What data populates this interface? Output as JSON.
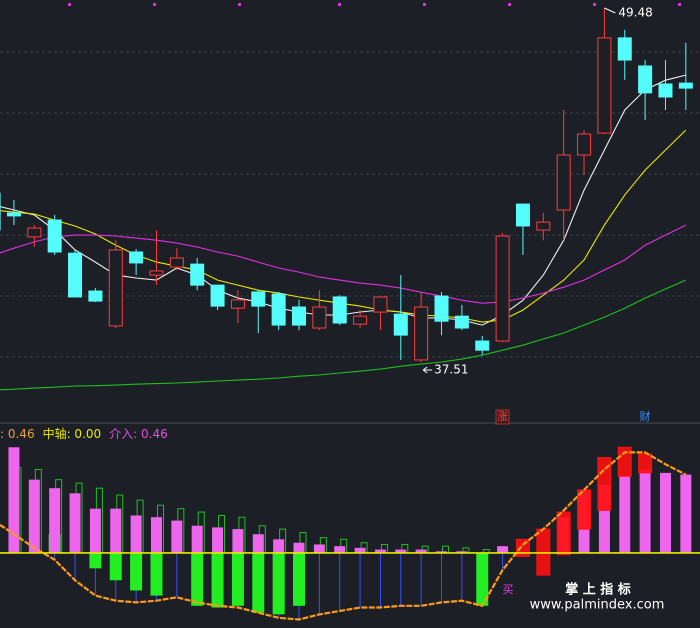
{
  "chart_data": [
    {
      "type": "candlestick",
      "ylim": [
        35.55,
        49.75
      ],
      "up_color": "#ff3c3c",
      "down_color": "#54fcfc",
      "ohlc": [
        [
          43.22,
          43.33,
          41.8,
          41.97
        ],
        [
          42.55,
          42.99,
          42.14,
          42.45
        ],
        [
          41.74,
          42.14,
          41.4,
          42.04
        ],
        [
          42.31,
          42.48,
          41.13,
          41.23
        ],
        [
          41.19,
          41.3,
          39.71,
          39.71
        ],
        [
          39.91,
          40.01,
          39.54,
          39.57
        ],
        [
          38.73,
          41.63,
          38.66,
          41.3
        ],
        [
          41.23,
          41.33,
          40.45,
          40.86
        ],
        [
          40.45,
          41.97,
          40.11,
          40.59
        ],
        [
          40.72,
          41.36,
          40.62,
          41.03
        ],
        [
          40.82,
          41.03,
          39.94,
          40.11
        ],
        [
          40.11,
          40.11,
          39.27,
          39.4
        ],
        [
          39.33,
          39.94,
          38.83,
          39.61
        ],
        [
          39.88,
          39.94,
          38.49,
          39.4
        ],
        [
          39.81,
          39.88,
          38.59,
          38.76
        ],
        [
          39.37,
          39.61,
          38.59,
          38.76
        ],
        [
          38.66,
          39.94,
          38.59,
          39.37
        ],
        [
          39.71,
          39.77,
          38.76,
          38.83
        ],
        [
          38.79,
          39.27,
          38.66,
          39.06
        ],
        [
          39.2,
          39.71,
          38.59,
          39.71
        ],
        [
          39.13,
          40.45,
          37.58,
          38.42
        ],
        [
          37.58,
          39.88,
          37.51,
          39.37
        ],
        [
          39.74,
          39.88,
          38.42,
          38.89
        ],
        [
          39.06,
          39.44,
          38.59,
          38.66
        ],
        [
          38.22,
          38.39,
          37.75,
          37.91
        ],
        [
          38.22,
          41.87,
          38.18,
          41.77
        ],
        [
          42.85,
          42.85,
          41.13,
          42.11
        ],
        [
          41.97,
          42.55,
          41.63,
          42.24
        ],
        [
          42.65,
          46.03,
          41.63,
          44.51
        ],
        [
          44.51,
          45.35,
          43.83,
          45.22
        ],
        [
          45.25,
          49.48,
          45.22,
          48.47
        ],
        [
          48.47,
          48.74,
          47.05,
          47.72
        ],
        [
          47.52,
          47.72,
          45.69,
          46.61
        ],
        [
          46.91,
          47.72,
          46.03,
          46.47
        ],
        [
          46.94,
          48.3,
          46.03,
          46.77
        ]
      ],
      "lines": [
        {
          "color": "#f0f0f0",
          "values": [
            42.82,
            42.65,
            42.48,
            41.97,
            41.3,
            40.89,
            40.45,
            40.35,
            40.28,
            40.69,
            40.45,
            39.94,
            39.67,
            39.54,
            39.33,
            39.2,
            39.1,
            39.1,
            39.2,
            39.27,
            39.2,
            39.0,
            39.0,
            38.93,
            38.76,
            39.1,
            39.6,
            40.45,
            41.63,
            43.32,
            44.68,
            46.03,
            46.71,
            47.04,
            47.21
          ]
        },
        {
          "color": "#e8e800",
          "values": [
            42.65,
            42.58,
            42.51,
            42.31,
            42.11,
            41.84,
            41.46,
            41.13,
            40.89,
            40.75,
            40.62,
            40.28,
            40.11,
            39.94,
            39.84,
            39.71,
            39.6,
            39.5,
            39.4,
            39.27,
            39.2,
            39.1,
            39.06,
            39.0,
            38.86,
            38.93,
            39.27,
            39.77,
            40.28,
            40.96,
            42.14,
            43.16,
            44.0,
            44.68,
            45.35
          ]
        },
        {
          "color": "#e030e0",
          "values": [
            41.13,
            41.36,
            41.57,
            41.74,
            41.8,
            41.8,
            41.77,
            41.7,
            41.63,
            41.53,
            41.4,
            41.23,
            41.09,
            40.89,
            40.69,
            40.55,
            40.38,
            40.28,
            40.18,
            40.11,
            40.01,
            39.87,
            39.74,
            39.6,
            39.5,
            39.54,
            39.67,
            39.84,
            40.04,
            40.28,
            40.62,
            40.96,
            41.46,
            41.8,
            42.14
          ]
        },
        {
          "color": "#20c020",
          "values": [
            36.56,
            36.59,
            36.63,
            36.66,
            36.7,
            36.71,
            36.73,
            36.76,
            36.78,
            36.8,
            36.83,
            36.87,
            36.9,
            36.93,
            36.97,
            37.03,
            37.07,
            37.14,
            37.2,
            37.27,
            37.37,
            37.44,
            37.51,
            37.61,
            37.74,
            37.91,
            38.08,
            38.29,
            38.49,
            38.76,
            39.03,
            39.33,
            39.67,
            39.98,
            40.28
          ]
        }
      ],
      "annotations": [
        {
          "label": "49.48",
          "value": 49.48
        },
        {
          "label": "37.51",
          "value": 37.51
        }
      ],
      "signals": [
        "涨",
        "财"
      ]
    },
    {
      "type": "indicator",
      "ylim": [
        -0.44,
        0.78
      ],
      "legend": [
        {
          "label": ": 0.46",
          "color": "#e8a040"
        },
        {
          "label": "中轴: 0.00",
          "value": 0,
          "color": "#e8e800"
        },
        {
          "label": "介入: 0.46",
          "color": "#e050e0"
        }
      ],
      "outline": {
        "color": "#20c020",
        "values": [
          null,
          0.5,
          0.49,
          0.43,
          0.41,
          0.38,
          0.34,
          0.31,
          0.28,
          0.26,
          0.24,
          0.22,
          0.21,
          0.16,
          0.14,
          0.12,
          0.09,
          0.08,
          0.06,
          0.05,
          0.05,
          0.04,
          0.04,
          0.03,
          0.02,
          null,
          null,
          null,
          null,
          null,
          null,
          null,
          null,
          null,
          null
        ]
      },
      "pink": {
        "color": "#ee66ee",
        "values": [
          0.19,
          0.62,
          0.43,
          0.38,
          0.35,
          0.26,
          0.26,
          0.22,
          0.21,
          0.19,
          0.16,
          0.15,
          0.14,
          0.11,
          0.08,
          0.06,
          0.05,
          0.04,
          0.03,
          0.02,
          0.02,
          0.02,
          0.01,
          0.01,
          null,
          0.04,
          null,
          null,
          0.21,
          0.37,
          0.4,
          0.45,
          0.49,
          0.47,
          0.46
        ]
      },
      "green": {
        "color": "#22ee22",
        "values": [
          null,
          null,
          null,
          0.11,
          null,
          -0.09,
          -0.16,
          -0.22,
          -0.25,
          null,
          -0.31,
          -0.32,
          -0.31,
          -0.35,
          -0.36,
          -0.31,
          null,
          null,
          null,
          null,
          null,
          null,
          null,
          null,
          -0.31,
          null,
          null,
          null,
          null,
          null,
          null,
          null,
          null,
          null,
          null
        ]
      },
      "red": {
        "color": "#ff1010",
        "values": [
          null,
          null,
          null,
          null,
          null,
          null,
          null,
          null,
          null,
          null,
          null,
          null,
          null,
          null,
          null,
          null,
          null,
          null,
          null,
          null,
          null,
          null,
          null,
          null,
          null,
          null,
          [
            -0.02,
            0.08
          ],
          [
            -0.13,
            0.14
          ],
          [
            -0.01,
            0.24
          ],
          [
            0.14,
            0.37
          ],
          [
            0.25,
            0.56
          ],
          [
            0.45,
            0.62
          ],
          [
            0.47,
            0.58
          ],
          null,
          null
        ]
      },
      "curve": {
        "color": "#ff9a1a",
        "drop_color": "#3a50ff",
        "values": [
          0.19,
          0.11,
          0.03,
          -0.04,
          -0.16,
          -0.25,
          -0.28,
          -0.29,
          -0.28,
          -0.26,
          -0.29,
          -0.31,
          -0.32,
          -0.35,
          -0.38,
          -0.39,
          -0.36,
          -0.34,
          -0.32,
          -0.32,
          -0.31,
          -0.31,
          -0.29,
          -0.28,
          -0.31,
          -0.1,
          0.05,
          0.14,
          0.25,
          0.37,
          0.49,
          0.59,
          0.59,
          0.52,
          0.46
        ]
      },
      "signals": [
        "买"
      ]
    }
  ],
  "watermark": [
    "掌 上 指 标",
    "www.palmindex.com"
  ]
}
